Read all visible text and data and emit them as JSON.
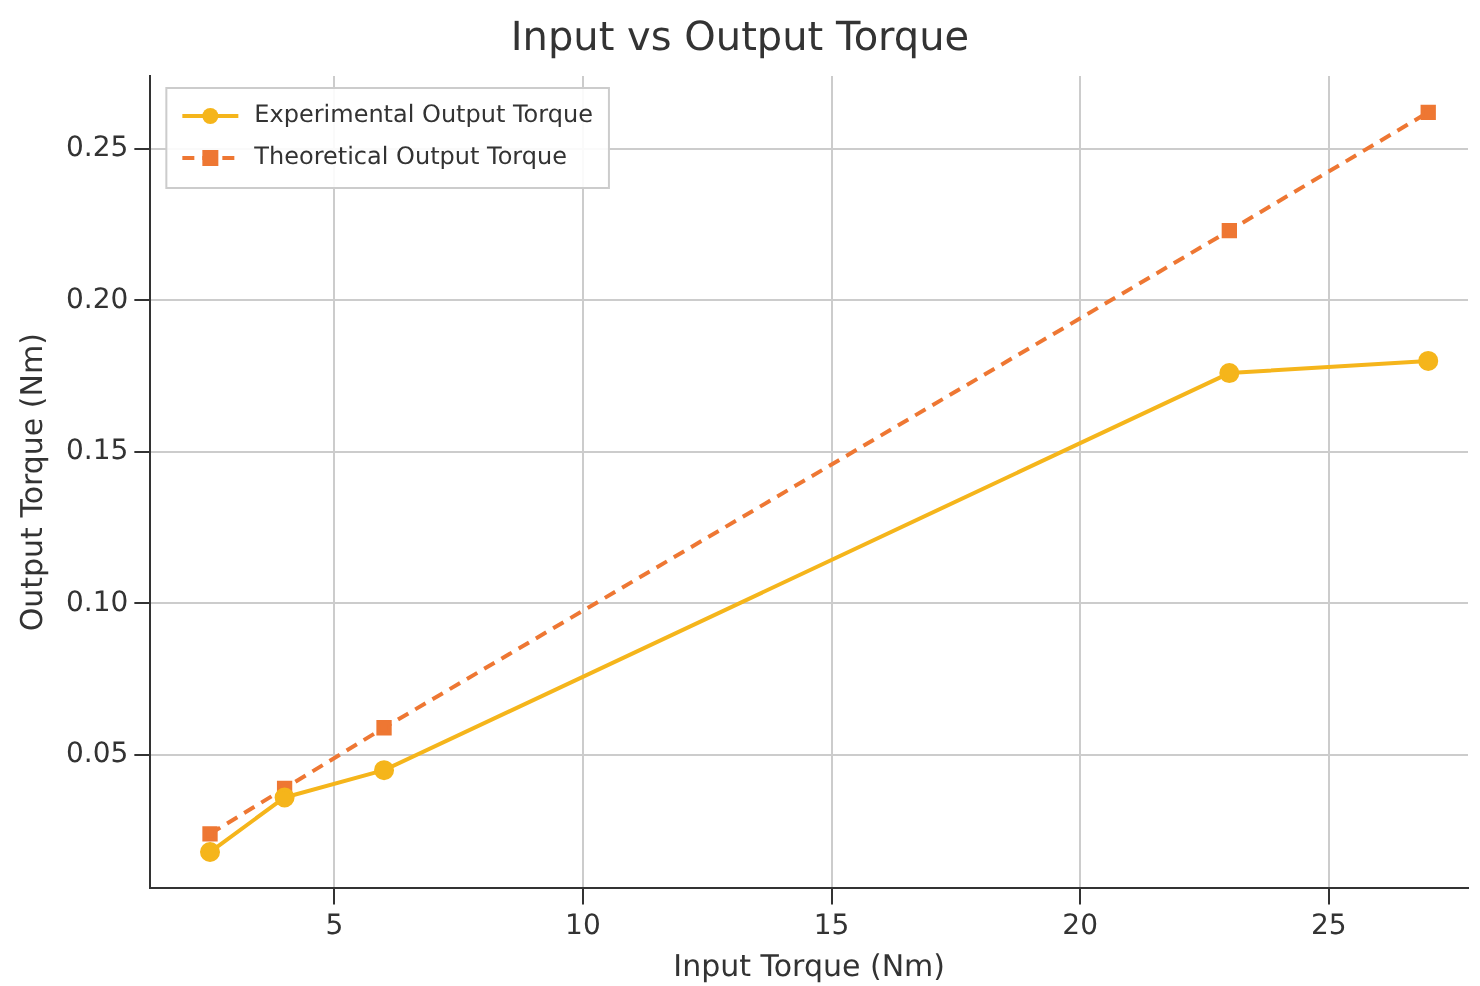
{
  "chart_data": {
    "type": "line",
    "title": "Input vs Output Torque",
    "xlabel": "Input Torque (Nm)",
    "ylabel": "Output Torque (Nm)",
    "x": [
      2.5,
      4,
      6,
      23,
      27
    ],
    "series": [
      {
        "name": "Experimental Output Torque",
        "color": "#f5b51b",
        "values": [
          0.018,
          0.036,
          0.045,
          0.176,
          0.18
        ],
        "marker": "circle",
        "line_style": "solid"
      },
      {
        "name": "Theoretical Output Torque",
        "color": "#ee7733",
        "values": [
          0.024,
          0.039,
          0.059,
          0.223,
          0.262
        ],
        "marker": "square",
        "line_style": "dashed"
      }
    ],
    "xlim": [
      1.3,
      27.8
    ],
    "xticks": [
      5,
      10,
      15,
      20,
      25
    ],
    "ylim": [
      0.006,
      0.274
    ],
    "yticks": [
      0.05,
      {
        "value": 0.1,
        "label": "0.10"
      },
      0.15,
      {
        "value": 0.2,
        "label": "0.20"
      },
      0.25
    ],
    "grid": true,
    "legend": "top left"
  }
}
